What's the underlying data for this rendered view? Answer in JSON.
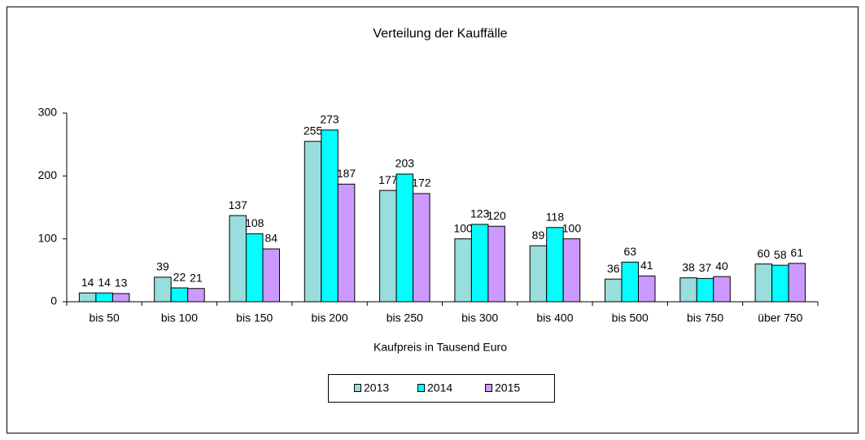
{
  "chart_data": {
    "type": "bar",
    "title": "Verteilung der Kauffälle",
    "x_label": "Kaufpreis in Tausend Euro",
    "categories": [
      "bis 50",
      "bis 100",
      "bis 150",
      "bis 200",
      "bis 250",
      "bis 300",
      "bis 400",
      "bis 500",
      "bis 750",
      "über 750"
    ],
    "series": [
      {
        "name": "2013",
        "color": "#99dddd",
        "values": [
          14,
          39,
          137,
          255,
          177,
          100,
          89,
          36,
          38,
          60
        ]
      },
      {
        "name": "2014",
        "color": "#00ffff",
        "values": [
          14,
          22,
          108,
          273,
          203,
          123,
          118,
          63,
          37,
          58
        ]
      },
      {
        "name": "2015",
        "color": "#cc99ff",
        "values": [
          13,
          21,
          84,
          187,
          172,
          120,
          100,
          41,
          40,
          61
        ]
      }
    ],
    "ylim": [
      0,
      300
    ],
    "yticks": [
      0,
      100,
      200,
      300
    ],
    "legend": "bottom"
  }
}
